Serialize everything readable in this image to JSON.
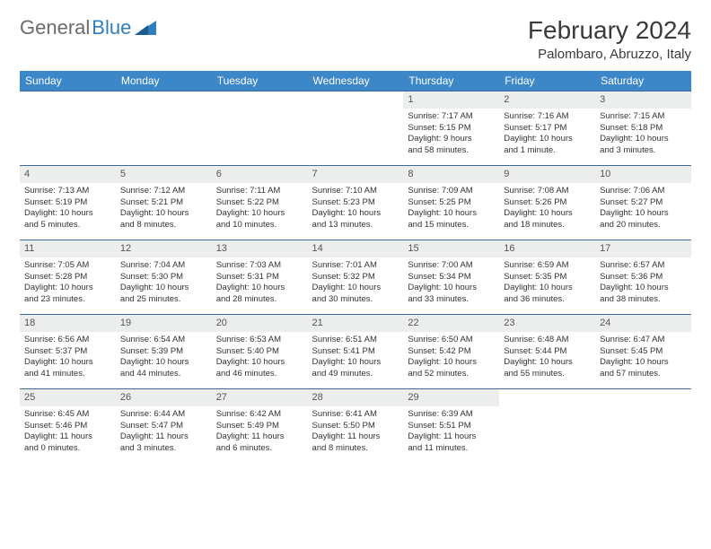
{
  "logo": {
    "text1": "General",
    "text2": "Blue"
  },
  "title": "February 2024",
  "location": "Palombaro, Abruzzo, Italy",
  "colors": {
    "header_bg": "#3b87c8",
    "header_text": "#ffffff",
    "week_border": "#3b6a9a",
    "daynum_bg": "#eceded",
    "title_color": "#3a3a3a",
    "logo_gray": "#6b6b6b",
    "logo_blue": "#2f7fbf"
  },
  "day_names": [
    "Sunday",
    "Monday",
    "Tuesday",
    "Wednesday",
    "Thursday",
    "Friday",
    "Saturday"
  ],
  "weeks": [
    [
      {
        "n": "",
        "sr": "",
        "ss": "",
        "d1": "",
        "d2": ""
      },
      {
        "n": "",
        "sr": "",
        "ss": "",
        "d1": "",
        "d2": ""
      },
      {
        "n": "",
        "sr": "",
        "ss": "",
        "d1": "",
        "d2": ""
      },
      {
        "n": "",
        "sr": "",
        "ss": "",
        "d1": "",
        "d2": ""
      },
      {
        "n": "1",
        "sr": "Sunrise: 7:17 AM",
        "ss": "Sunset: 5:15 PM",
        "d1": "Daylight: 9 hours",
        "d2": "and 58 minutes."
      },
      {
        "n": "2",
        "sr": "Sunrise: 7:16 AM",
        "ss": "Sunset: 5:17 PM",
        "d1": "Daylight: 10 hours",
        "d2": "and 1 minute."
      },
      {
        "n": "3",
        "sr": "Sunrise: 7:15 AM",
        "ss": "Sunset: 5:18 PM",
        "d1": "Daylight: 10 hours",
        "d2": "and 3 minutes."
      }
    ],
    [
      {
        "n": "4",
        "sr": "Sunrise: 7:13 AM",
        "ss": "Sunset: 5:19 PM",
        "d1": "Daylight: 10 hours",
        "d2": "and 5 minutes."
      },
      {
        "n": "5",
        "sr": "Sunrise: 7:12 AM",
        "ss": "Sunset: 5:21 PM",
        "d1": "Daylight: 10 hours",
        "d2": "and 8 minutes."
      },
      {
        "n": "6",
        "sr": "Sunrise: 7:11 AM",
        "ss": "Sunset: 5:22 PM",
        "d1": "Daylight: 10 hours",
        "d2": "and 10 minutes."
      },
      {
        "n": "7",
        "sr": "Sunrise: 7:10 AM",
        "ss": "Sunset: 5:23 PM",
        "d1": "Daylight: 10 hours",
        "d2": "and 13 minutes."
      },
      {
        "n": "8",
        "sr": "Sunrise: 7:09 AM",
        "ss": "Sunset: 5:25 PM",
        "d1": "Daylight: 10 hours",
        "d2": "and 15 minutes."
      },
      {
        "n": "9",
        "sr": "Sunrise: 7:08 AM",
        "ss": "Sunset: 5:26 PM",
        "d1": "Daylight: 10 hours",
        "d2": "and 18 minutes."
      },
      {
        "n": "10",
        "sr": "Sunrise: 7:06 AM",
        "ss": "Sunset: 5:27 PM",
        "d1": "Daylight: 10 hours",
        "d2": "and 20 minutes."
      }
    ],
    [
      {
        "n": "11",
        "sr": "Sunrise: 7:05 AM",
        "ss": "Sunset: 5:28 PM",
        "d1": "Daylight: 10 hours",
        "d2": "and 23 minutes."
      },
      {
        "n": "12",
        "sr": "Sunrise: 7:04 AM",
        "ss": "Sunset: 5:30 PM",
        "d1": "Daylight: 10 hours",
        "d2": "and 25 minutes."
      },
      {
        "n": "13",
        "sr": "Sunrise: 7:03 AM",
        "ss": "Sunset: 5:31 PM",
        "d1": "Daylight: 10 hours",
        "d2": "and 28 minutes."
      },
      {
        "n": "14",
        "sr": "Sunrise: 7:01 AM",
        "ss": "Sunset: 5:32 PM",
        "d1": "Daylight: 10 hours",
        "d2": "and 30 minutes."
      },
      {
        "n": "15",
        "sr": "Sunrise: 7:00 AM",
        "ss": "Sunset: 5:34 PM",
        "d1": "Daylight: 10 hours",
        "d2": "and 33 minutes."
      },
      {
        "n": "16",
        "sr": "Sunrise: 6:59 AM",
        "ss": "Sunset: 5:35 PM",
        "d1": "Daylight: 10 hours",
        "d2": "and 36 minutes."
      },
      {
        "n": "17",
        "sr": "Sunrise: 6:57 AM",
        "ss": "Sunset: 5:36 PM",
        "d1": "Daylight: 10 hours",
        "d2": "and 38 minutes."
      }
    ],
    [
      {
        "n": "18",
        "sr": "Sunrise: 6:56 AM",
        "ss": "Sunset: 5:37 PM",
        "d1": "Daylight: 10 hours",
        "d2": "and 41 minutes."
      },
      {
        "n": "19",
        "sr": "Sunrise: 6:54 AM",
        "ss": "Sunset: 5:39 PM",
        "d1": "Daylight: 10 hours",
        "d2": "and 44 minutes."
      },
      {
        "n": "20",
        "sr": "Sunrise: 6:53 AM",
        "ss": "Sunset: 5:40 PM",
        "d1": "Daylight: 10 hours",
        "d2": "and 46 minutes."
      },
      {
        "n": "21",
        "sr": "Sunrise: 6:51 AM",
        "ss": "Sunset: 5:41 PM",
        "d1": "Daylight: 10 hours",
        "d2": "and 49 minutes."
      },
      {
        "n": "22",
        "sr": "Sunrise: 6:50 AM",
        "ss": "Sunset: 5:42 PM",
        "d1": "Daylight: 10 hours",
        "d2": "and 52 minutes."
      },
      {
        "n": "23",
        "sr": "Sunrise: 6:48 AM",
        "ss": "Sunset: 5:44 PM",
        "d1": "Daylight: 10 hours",
        "d2": "and 55 minutes."
      },
      {
        "n": "24",
        "sr": "Sunrise: 6:47 AM",
        "ss": "Sunset: 5:45 PM",
        "d1": "Daylight: 10 hours",
        "d2": "and 57 minutes."
      }
    ],
    [
      {
        "n": "25",
        "sr": "Sunrise: 6:45 AM",
        "ss": "Sunset: 5:46 PM",
        "d1": "Daylight: 11 hours",
        "d2": "and 0 minutes."
      },
      {
        "n": "26",
        "sr": "Sunrise: 6:44 AM",
        "ss": "Sunset: 5:47 PM",
        "d1": "Daylight: 11 hours",
        "d2": "and 3 minutes."
      },
      {
        "n": "27",
        "sr": "Sunrise: 6:42 AM",
        "ss": "Sunset: 5:49 PM",
        "d1": "Daylight: 11 hours",
        "d2": "and 6 minutes."
      },
      {
        "n": "28",
        "sr": "Sunrise: 6:41 AM",
        "ss": "Sunset: 5:50 PM",
        "d1": "Daylight: 11 hours",
        "d2": "and 8 minutes."
      },
      {
        "n": "29",
        "sr": "Sunrise: 6:39 AM",
        "ss": "Sunset: 5:51 PM",
        "d1": "Daylight: 11 hours",
        "d2": "and 11 minutes."
      },
      {
        "n": "",
        "sr": "",
        "ss": "",
        "d1": "",
        "d2": ""
      },
      {
        "n": "",
        "sr": "",
        "ss": "",
        "d1": "",
        "d2": ""
      }
    ]
  ]
}
